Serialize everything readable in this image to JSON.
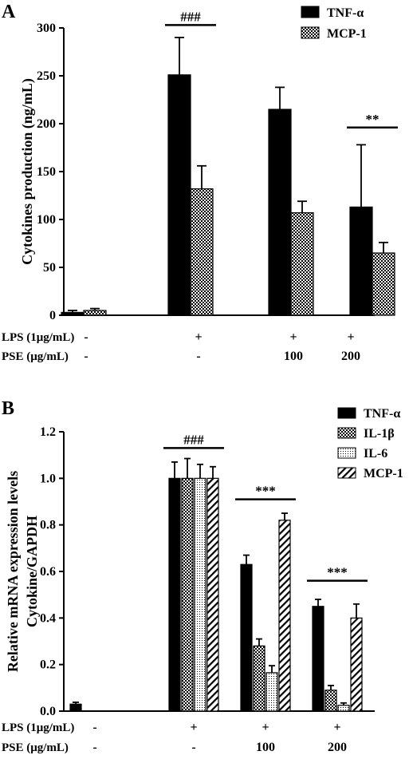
{
  "colors": {
    "ink": "#000000",
    "background": "#ffffff"
  },
  "patterns": {
    "black": "solid",
    "checker": "checkered",
    "dots": "dotted",
    "hatch": "diagonal-hatched"
  },
  "chart_data": [
    {
      "type": "bar",
      "panel_label": "A",
      "ylabel": "Cytokines production (ng/mL)",
      "ylim": [
        0,
        300
      ],
      "yticks": [
        "0",
        "50",
        "100",
        "150",
        "200",
        "250",
        "300"
      ],
      "ytick_values": [
        0,
        50,
        100,
        150,
        200,
        250,
        300
      ],
      "categories": [
        "1",
        "2",
        "3",
        "4"
      ],
      "conditions": [
        {
          "label": "LPS (1μg/mL)",
          "values": [
            "-",
            "+",
            "+",
            "+"
          ]
        },
        {
          "label": "PSE (μg/mL)",
          "values": [
            "-",
            "-",
            "100",
            "200"
          ]
        }
      ],
      "series": [
        {
          "name": "TNF-α",
          "pattern": "black",
          "values": [
            3,
            251,
            215,
            113
          ],
          "errors": [
            2,
            39,
            23,
            65
          ]
        },
        {
          "name": "MCP-1",
          "pattern": "checker",
          "values": [
            5,
            132,
            107,
            65
          ],
          "errors": [
            2,
            24,
            12,
            11
          ]
        }
      ],
      "legend_position": "top-right",
      "grid": false,
      "annotations": [
        {
          "text": "###",
          "group_index": 1,
          "level": 303
        },
        {
          "text": "**",
          "group_index": 3,
          "level": 196
        }
      ]
    },
    {
      "type": "bar",
      "panel_label": "B",
      "ylabel": "Relative mRNA expression levels",
      "ylabel2": "Cytokine/GAPDH",
      "ylim": [
        0,
        1.2
      ],
      "yticks": [
        "0.0",
        "0.2",
        "0.4",
        "0.6",
        "0.8",
        "1.0",
        "1.2"
      ],
      "ytick_values": [
        0,
        0.2,
        0.4,
        0.6,
        0.8,
        1.0,
        1.2
      ],
      "categories": [
        "1",
        "2",
        "3",
        "4"
      ],
      "conditions": [
        {
          "label": "LPS (1μg/mL)",
          "values": [
            "-",
            "+",
            "+",
            "+"
          ]
        },
        {
          "label": "PSE (μg/mL)",
          "values": [
            "-",
            "-",
            "100",
            "200"
          ]
        }
      ],
      "series": [
        {
          "name": "TNF-α",
          "pattern": "black",
          "values": [
            0.03,
            1.0,
            0.63,
            0.45
          ],
          "errors": [
            0.008,
            0.07,
            0.04,
            0.03
          ]
        },
        {
          "name": "IL-1β",
          "pattern": "checker",
          "values": [
            0,
            1.0,
            0.28,
            0.09
          ],
          "errors": [
            0,
            0.085,
            0.03,
            0.02
          ]
        },
        {
          "name": "IL-6",
          "pattern": "dots",
          "values": [
            0,
            1.0,
            0.165,
            0.025
          ],
          "errors": [
            0,
            0.06,
            0.03,
            0.01
          ]
        },
        {
          "name": "MCP-1",
          "pattern": "hatch",
          "values": [
            0,
            1.0,
            0.82,
            0.4
          ],
          "errors": [
            0,
            0.05,
            0.03,
            0.06
          ]
        }
      ],
      "legend_position": "top-right",
      "grid": false,
      "annotations": [
        {
          "text": "###",
          "group_index": 1,
          "level": 1.13
        },
        {
          "text": "***",
          "group_index": 2,
          "level": 0.91
        },
        {
          "text": "***",
          "group_index": 3,
          "level": 0.56
        }
      ]
    }
  ]
}
